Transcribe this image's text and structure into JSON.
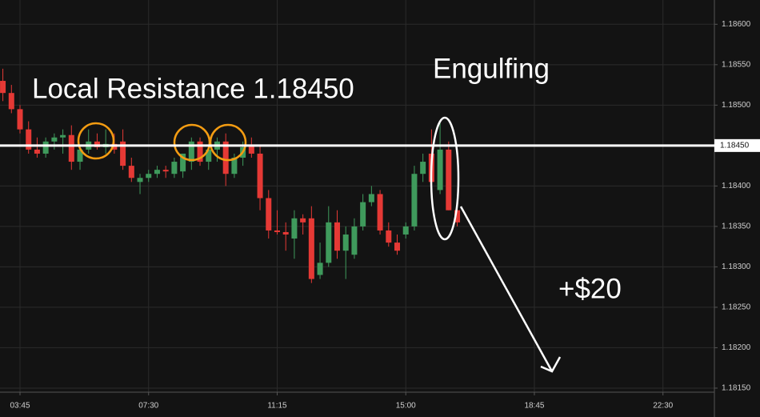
{
  "chart_data": {
    "type": "candlestick",
    "x": [
      195,
      210,
      225,
      240,
      255,
      270,
      285,
      300,
      315,
      330,
      345,
      360,
      375,
      390,
      405,
      420,
      435,
      450,
      465,
      480,
      495,
      510,
      525,
      540,
      555,
      570,
      585,
      600,
      615,
      630,
      645,
      660,
      675,
      690,
      705,
      720,
      735,
      750,
      765,
      780,
      795,
      810,
      825,
      840,
      855,
      870,
      885,
      900,
      915,
      930,
      945,
      960,
      975,
      990
    ],
    "open": [
      1.1853,
      1.18515,
      1.18495,
      1.1847,
      1.18445,
      1.1844,
      1.18455,
      1.1846,
      1.18463,
      1.1843,
      1.18445,
      1.18455,
      1.18448,
      1.18452,
      1.18455,
      1.18425,
      1.18405,
      1.1841,
      1.18415,
      1.1842,
      1.18415,
      1.18418,
      1.1843,
      1.18455,
      1.1843,
      1.18445,
      1.18455,
      1.18415,
      1.18435,
      1.1845,
      1.1844,
      1.18385,
      1.18345,
      1.18343,
      1.18335,
      1.1836,
      1.1836,
      1.1829,
      1.18305,
      1.18355,
      1.1832,
      1.18315,
      1.1835,
      1.1838,
      1.1839,
      1.18345,
      1.1833,
      1.1834,
      1.1835,
      1.18415,
      1.1844,
      1.18395,
      1.18445,
      1.1837
    ],
    "high": [
      1.18545,
      1.18525,
      1.185,
      1.1848,
      1.1846,
      1.1846,
      1.18465,
      1.1847,
      1.18475,
      1.1845,
      1.1847,
      1.18465,
      1.1847,
      1.18465,
      1.1847,
      1.18435,
      1.18415,
      1.1842,
      1.18425,
      1.18425,
      1.18435,
      1.1844,
      1.1846,
      1.1846,
      1.1845,
      1.1846,
      1.18465,
      1.1844,
      1.18455,
      1.1846,
      1.1845,
      1.18395,
      1.1837,
      1.18355,
      1.1837,
      1.18365,
      1.18375,
      1.1833,
      1.18375,
      1.1837,
      1.1835,
      1.1836,
      1.1839,
      1.184,
      1.18395,
      1.18355,
      1.1834,
      1.18355,
      1.18425,
      1.1844,
      1.1847,
      1.1848,
      1.18455,
      1.18375
    ],
    "low": [
      1.18505,
      1.1849,
      1.18465,
      1.1844,
      1.18435,
      1.18435,
      1.18445,
      1.1844,
      1.1842,
      1.1842,
      1.1844,
      1.18445,
      1.1844,
      1.1844,
      1.1842,
      1.18405,
      1.1839,
      1.18405,
      1.1841,
      1.1841,
      1.1841,
      1.1841,
      1.1842,
      1.18425,
      1.1842,
      1.1843,
      1.184,
      1.1841,
      1.18425,
      1.18435,
      1.1837,
      1.18335,
      1.1834,
      1.1832,
      1.1831,
      1.1834,
      1.1828,
      1.18285,
      1.183,
      1.1831,
      1.18285,
      1.1831,
      1.18345,
      1.18375,
      1.1834,
      1.18325,
      1.18315,
      1.18335,
      1.18345,
      1.18405,
      1.18395,
      1.1839,
      1.1837,
      1.1835
    ],
    "close": [
      1.18515,
      1.18495,
      1.1847,
      1.18445,
      1.1844,
      1.18455,
      1.1846,
      1.18463,
      1.1843,
      1.18445,
      1.18455,
      1.18448,
      1.18452,
      1.18445,
      1.18425,
      1.1841,
      1.1841,
      1.18415,
      1.1842,
      1.18418,
      1.1843,
      1.1844,
      1.18455,
      1.1843,
      1.18445,
      1.18455,
      1.18415,
      1.18435,
      1.18448,
      1.1844,
      1.18385,
      1.18345,
      1.18343,
      1.1834,
      1.1836,
      1.18355,
      1.18285,
      1.18305,
      1.18355,
      1.1832,
      1.1834,
      1.1835,
      1.1838,
      1.1839,
      1.18345,
      1.1833,
      1.1832,
      1.1835,
      1.18415,
      1.1843,
      1.18405,
      1.18445,
      1.1837,
      1.18355
    ],
    "up_color": "#3f9a5c",
    "down_color": "#e53935",
    "xlim": [
      190,
      1440
    ],
    "ylim": [
      1.18145,
      1.1863
    ],
    "xticks": [
      {
        "value": 225,
        "label": "03:45"
      },
      {
        "value": 450,
        "label": "07:30"
      },
      {
        "value": 675,
        "label": "11:15"
      },
      {
        "value": 900,
        "label": "15:00"
      },
      {
        "value": 1125,
        "label": "18:45"
      },
      {
        "value": 1350,
        "label": "22:30"
      }
    ],
    "yticks": [
      {
        "value": 1.1815,
        "label": "1.18150"
      },
      {
        "value": 1.182,
        "label": "1.18200"
      },
      {
        "value": 1.1825,
        "label": "1.18250"
      },
      {
        "value": 1.183,
        "label": "1.18300"
      },
      {
        "value": 1.1835,
        "label": "1.18350"
      },
      {
        "value": 1.184,
        "label": "1.18400"
      },
      {
        "value": 1.185,
        "label": "1.18500"
      },
      {
        "value": 1.1855,
        "label": "1.18550"
      },
      {
        "value": 1.186,
        "label": "1.18600"
      }
    ],
    "grid": true,
    "hline": {
      "value": 1.1845,
      "label": "1.18450",
      "color": "#ffffff"
    },
    "annotations": [
      "Local Resistance 1.18450",
      "Engulfing",
      "+$20"
    ]
  }
}
